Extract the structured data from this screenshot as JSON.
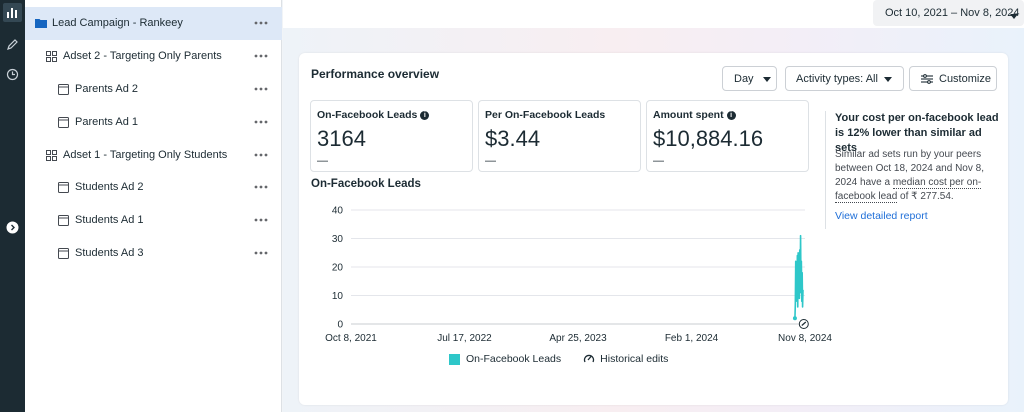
{
  "rail": {
    "icons": [
      "bar-chart-icon",
      "pencil-icon",
      "clock-icon",
      "chevron-right-circle-icon"
    ]
  },
  "tree": {
    "items": [
      {
        "label": "Lead Campaign - Rankeey",
        "level": "campaign",
        "icon": "folder-icon",
        "selected": true
      },
      {
        "label": "Adset 2 - Targeting Only Parents",
        "level": "adset",
        "icon": "grid-icon"
      },
      {
        "label": "Parents Ad 2",
        "level": "ad",
        "icon": "ad-icon"
      },
      {
        "label": "Parents Ad 1",
        "level": "ad",
        "icon": "ad-icon"
      },
      {
        "label": "Adset 1 - Targeting Only Students",
        "level": "adset",
        "icon": "grid-icon"
      },
      {
        "label": "Students Ad 2",
        "level": "ad",
        "icon": "ad-icon"
      },
      {
        "label": "Students Ad 1",
        "level": "ad",
        "icon": "ad-icon"
      },
      {
        "label": "Students Ad 3",
        "level": "ad",
        "icon": "ad-icon"
      }
    ]
  },
  "header": {
    "date_range": "Oct 10, 2021 – Nov 8, 2024"
  },
  "overview": {
    "title": "Performance overview",
    "day_label": "Day",
    "activity_label": "Activity types: All",
    "customize_label": "Customize",
    "metrics": [
      {
        "label": "On-Facebook Leads",
        "value": "3164",
        "delta": "—",
        "info": true
      },
      {
        "label": "Per On-Facebook Leads",
        "value": "$3.44",
        "delta": "—",
        "info": false
      },
      {
        "label": "Amount spent",
        "value": "$10,884.16",
        "delta": "—",
        "info": true
      }
    ],
    "chart_title": "On-Facebook Leads",
    "insight": {
      "title": "Your cost per on-facebook lead is 12% lower than similar ad sets",
      "body_pre": "Similar ad sets run by your peers between Oct 18, 2024 and Nov 8, 2024 have a ",
      "body_link": "median cost per on-facebook lead",
      "body_post": " of ₹ 277.54.",
      "link": "View detailed report"
    },
    "legend": {
      "series": "On-Facebook Leads",
      "edits": "Historical edits"
    }
  },
  "colors": {
    "accent": "#1f6fd8",
    "series": "#2ec7c9",
    "selected_row": "#dde8f7",
    "rail": "#1c2b33"
  },
  "chart_data": {
    "type": "line",
    "title": "On-Facebook Leads",
    "xlabel": "",
    "ylabel": "",
    "ylim": [
      0,
      40
    ],
    "yticks": [
      "0",
      "10",
      "20",
      "30",
      "40"
    ],
    "xticks": [
      "Oct 8, 2021",
      "Jul 17, 2022",
      "Apr 25, 2023",
      "Feb 1, 2024",
      "Nov 8, 2024"
    ],
    "xrange": [
      "2021-10-08",
      "2024-11-08"
    ],
    "grid": true,
    "legend": "bottom",
    "series": [
      {
        "name": "On-Facebook Leads",
        "color": "#2ec7c9",
        "x": [
          "2024-10-14",
          "2024-10-15",
          "2024-10-16",
          "2024-10-17",
          "2024-10-18",
          "2024-10-19",
          "2024-10-20",
          "2024-10-21",
          "2024-10-22",
          "2024-10-23",
          "2024-10-24",
          "2024-10-25",
          "2024-10-26",
          "2024-10-27",
          "2024-10-28",
          "2024-10-29",
          "2024-10-30",
          "2024-10-31",
          "2024-11-01",
          "2024-11-02",
          "2024-11-03"
        ],
        "y": [
          2,
          7,
          22,
          8,
          21,
          12,
          24,
          6,
          25,
          10,
          23,
          9,
          26,
          11,
          31,
          14,
          22,
          8,
          18,
          6,
          12
        ]
      }
    ],
    "annotations": [
      {
        "type": "historical-edit",
        "x": "2024-11-05"
      }
    ]
  }
}
